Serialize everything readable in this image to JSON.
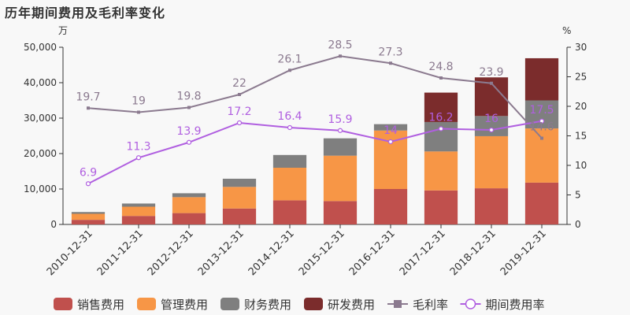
{
  "title": "历年期间费用及毛利率变化",
  "chart_data": {
    "type": "bar",
    "title": "历年期间费用及毛利率变化",
    "y_left_unit": "万",
    "y_right_unit": "%",
    "y_left_lim": [
      0,
      50000
    ],
    "y_right_lim": [
      0,
      30
    ],
    "y_left_ticks": [
      "0",
      "10,000",
      "20,000",
      "30,000",
      "40,000",
      "50,000"
    ],
    "y_right_ticks": [
      "0",
      "5",
      "10",
      "15",
      "20",
      "25",
      "30"
    ],
    "categories": [
      "2010-12-31",
      "2011-12-31",
      "2012-12-31",
      "2013-12-31",
      "2014-12-31",
      "2015-12-31",
      "2016-12-31",
      "2017-12-31",
      "2018-12-31",
      "2019-12-31"
    ],
    "stacked": true,
    "series": [
      {
        "name": "销售费用",
        "type": "bar",
        "axis": "left",
        "color": "#c0504d",
        "values": [
          1300,
          2400,
          3200,
          4500,
          6800,
          6600,
          10000,
          9600,
          10200,
          11800
        ]
      },
      {
        "name": "管理费用",
        "type": "bar",
        "axis": "left",
        "color": "#f79646",
        "values": [
          1700,
          2600,
          4500,
          6100,
          9200,
          12800,
          16500,
          11000,
          14700,
          15300
        ]
      },
      {
        "name": "财务费用",
        "type": "bar",
        "axis": "left",
        "color": "#7f7f7f",
        "values": [
          500,
          900,
          1100,
          2300,
          3600,
          4900,
          1800,
          8300,
          5700,
          7900
        ]
      },
      {
        "name": "研发费用",
        "type": "bar",
        "axis": "left",
        "color": "#7b2c2c",
        "values": [
          0,
          0,
          0,
          0,
          0,
          0,
          0,
          8300,
          10900,
          11900
        ]
      },
      {
        "name": "毛利率",
        "type": "line",
        "axis": "right",
        "color": "#8b7a8f",
        "values": [
          19.7,
          19,
          19.8,
          22,
          26.1,
          28.5,
          27.3,
          24.8,
          23.9,
          14.6
        ],
        "labels": [
          "19.7",
          "19",
          "19.8",
          "22",
          "26.1",
          "28.5",
          "27.3",
          "24.8",
          "23.9",
          "14.6"
        ]
      },
      {
        "name": "期间费用率",
        "type": "line",
        "axis": "right",
        "color": "#b05fe0",
        "values": [
          6.9,
          11.3,
          13.9,
          17.2,
          16.4,
          15.9,
          14,
          16.2,
          16,
          17.5
        ],
        "labels": [
          "6.9",
          "11.3",
          "13.9",
          "17.2",
          "16.4",
          "15.9",
          "14",
          "16.2",
          "16",
          "17.5"
        ]
      }
    ],
    "legend_position": "bottom",
    "grid": false
  }
}
